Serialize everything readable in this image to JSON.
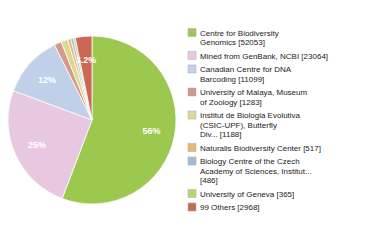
{
  "chart_data": {
    "type": "pie",
    "categories": [
      "Centre for Biodiversity\nGenomics [52053]",
      "Mined from GenBank, NCBI [23064]",
      "Canadian Centre for DNA\nBarcoding [11099]",
      "University of Malaya, Museum\nof Zoology [1283]",
      "Institut de Biologia Evolutiva\n(CSIC-UPF), Butterfly\nDiv... [1188]",
      "Naturalis Biodiversity Center [517]",
      "Biology Centre of the Czech\nAcademy of Sciences, Institut...\n[486]",
      "University of Geneva [365]",
      "99 Others [2968]"
    ],
    "values": [
      56,
      25,
      12,
      1.4,
      1.3,
      0.6,
      0.5,
      0.4,
      3.2
    ],
    "value_labels": [
      "56%",
      "25%",
      "12%",
      null,
      null,
      null,
      null,
      null,
      "3.2%"
    ],
    "colors": [
      "#9dc850",
      "#e8c8e0",
      "#c0d0e8",
      "#d4998a",
      "#ddd890",
      "#e8b870",
      "#a0bcd8",
      "#b8d870",
      "#cc6655"
    ],
    "data_labels": true,
    "legend": "right"
  }
}
